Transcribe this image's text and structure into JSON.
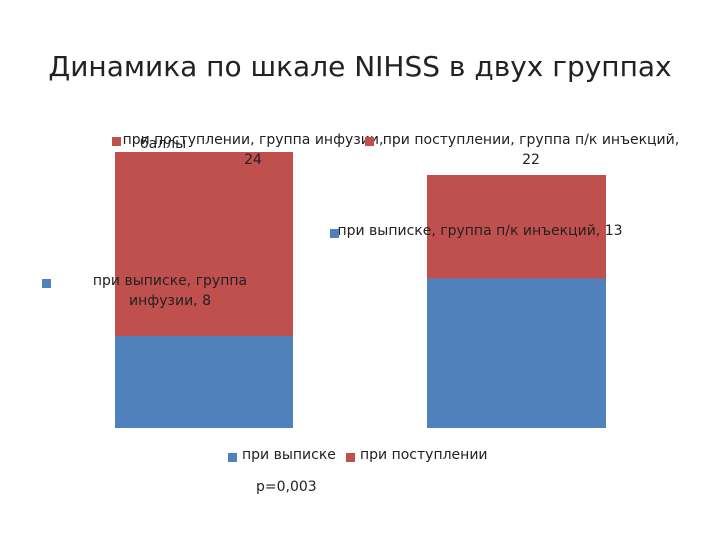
{
  "chart_data": {
    "type": "bar",
    "title": "Динамика по шкале NIHSS в двух группах",
    "y_label": "баллы",
    "annotation": "p=0,003",
    "ylim": [
      0,
      24
    ],
    "series": [
      {
        "name": "при выписке",
        "color": "#4f81bd",
        "values": [
          8,
          13
        ],
        "value_labels": [
          "при выписке, группа инфузии, 8",
          "при выписке, группа п/к инъекций, 13"
        ]
      },
      {
        "name": "при поступлении",
        "color": "#c0504d",
        "values": [
          24,
          22
        ],
        "value_labels": [
          "при поступлении, группа инфузии, 24",
          "при поступлении, группа п/к инъекций, 22"
        ]
      }
    ]
  }
}
